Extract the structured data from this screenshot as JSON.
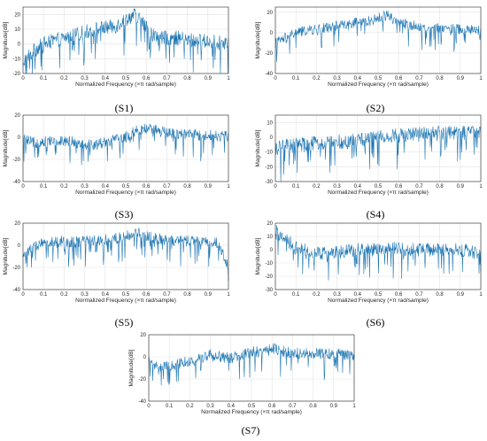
{
  "figure": {
    "xlabel": "Normalized Frequency  (×π rad/sample)",
    "ylabel": "Magnitude[dB]",
    "line_color": "#1f77b4"
  },
  "chart_data": [
    {
      "type": "line",
      "caption": "(S1)",
      "xlabel": "Normalized Frequency  (×π rad/sample)",
      "ylabel": "Magnitude[dB]",
      "xlim": [
        0,
        1
      ],
      "ylim": [
        -20,
        25
      ],
      "xticks": [
        "0",
        "0.1",
        "0.2",
        "0.3",
        "0.4",
        "0.5",
        "0.6",
        "0.7",
        "0.8",
        "0.9",
        "1"
      ],
      "yticks": [
        "-20",
        "-10",
        "0",
        "10",
        "20"
      ],
      "grid": true,
      "series": [
        {
          "x": [
            0,
            0.05,
            0.1,
            0.15,
            0.2,
            0.25,
            0.3,
            0.35,
            0.4,
            0.45,
            0.5,
            0.55,
            0.6,
            0.65,
            0.7,
            0.75,
            0.8,
            0.85,
            0.9,
            0.95,
            1
          ],
          "values": [
            -12,
            -5,
            0,
            2,
            4,
            6,
            8,
            10,
            11,
            12,
            17,
            20,
            11,
            4,
            4,
            4,
            3,
            2,
            2,
            1,
            0
          ]
        }
      ]
    },
    {
      "type": "line",
      "caption": "(S2)",
      "xlabel": "Normalized Frequency  (×π rad/sample)",
      "ylabel": "Magnitude[dB]",
      "xlim": [
        0,
        1
      ],
      "ylim": [
        -40,
        25
      ],
      "xticks": [
        "0",
        "0.1",
        "0.2",
        "0.3",
        "0.4",
        "0.5",
        "0.6",
        "0.7",
        "0.8",
        "0.9",
        "1"
      ],
      "yticks": [
        "-40",
        "-20",
        "0",
        "20"
      ],
      "grid": true,
      "series": [
        {
          "x": [
            0,
            0.05,
            0.1,
            0.15,
            0.2,
            0.25,
            0.3,
            0.35,
            0.4,
            0.45,
            0.5,
            0.55,
            0.6,
            0.65,
            0.7,
            0.75,
            0.8,
            0.85,
            0.9,
            0.95,
            1
          ],
          "values": [
            -10,
            -5,
            0,
            2,
            3,
            5,
            7,
            9,
            10,
            11,
            14,
            18,
            10,
            8,
            6,
            5,
            5,
            4,
            3,
            3,
            2
          ]
        }
      ]
    },
    {
      "type": "line",
      "caption": "(S3)",
      "xlabel": "Normalized Frequency  (×π rad/sample)",
      "ylabel": "Magnitude[dB]",
      "xlim": [
        0,
        1
      ],
      "ylim": [
        -40,
        20
      ],
      "xticks": [
        "0",
        "0.1",
        "0.2",
        "0.3",
        "0.4",
        "0.5",
        "0.6",
        "0.7",
        "0.8",
        "0.9",
        "1"
      ],
      "yticks": [
        "-40",
        "-20",
        "0",
        "20"
      ],
      "grid": true,
      "series": [
        {
          "x": [
            0,
            0.05,
            0.1,
            0.15,
            0.2,
            0.25,
            0.3,
            0.35,
            0.4,
            0.45,
            0.5,
            0.55,
            0.6,
            0.65,
            0.7,
            0.75,
            0.8,
            0.85,
            0.9,
            0.95,
            1
          ],
          "values": [
            -2,
            -5,
            -4,
            -3,
            -3,
            -4,
            -6,
            -7,
            -4,
            -2,
            0,
            6,
            8,
            6,
            4,
            3,
            3,
            2,
            2,
            1,
            1
          ]
        }
      ]
    },
    {
      "type": "line",
      "caption": "(S4)",
      "xlabel": "Normalized Frequency  (×π rad/sample)",
      "ylabel": "Magnitude[dB]",
      "xlim": [
        0,
        1
      ],
      "ylim": [
        -30,
        15
      ],
      "xticks": [
        "0",
        "0.1",
        "0.2",
        "0.3",
        "0.4",
        "0.5",
        "0.6",
        "0.7",
        "0.8",
        "0.9",
        "1"
      ],
      "yticks": [
        "-30",
        "-20",
        "-10",
        "0",
        "10"
      ],
      "grid": true,
      "series": [
        {
          "x": [
            0,
            0.05,
            0.1,
            0.15,
            0.2,
            0.25,
            0.3,
            0.35,
            0.4,
            0.45,
            0.5,
            0.55,
            0.6,
            0.65,
            0.7,
            0.75,
            0.8,
            0.85,
            0.9,
            0.95,
            1
          ],
          "values": [
            -8,
            -6,
            -5,
            -5,
            -4,
            -4,
            -3,
            -3,
            -2,
            -1,
            0,
            1,
            1,
            2,
            2,
            3,
            3,
            3,
            3,
            3,
            3
          ]
        }
      ]
    },
    {
      "type": "line",
      "caption": "(S5)",
      "xlabel": "Normalized Frequency  (×π rad/sample)",
      "ylabel": "Magnitude[dB]",
      "xlim": [
        0,
        1
      ],
      "ylim": [
        -40,
        20
      ],
      "xticks": [
        "0",
        "0.1",
        "0.2",
        "0.3",
        "0.4",
        "0.5",
        "0.6",
        "0.7",
        "0.8",
        "0.9",
        "1"
      ],
      "yticks": [
        "-40",
        "-20",
        "0",
        "20"
      ],
      "grid": true,
      "series": [
        {
          "x": [
            0,
            0.05,
            0.1,
            0.15,
            0.2,
            0.25,
            0.3,
            0.35,
            0.4,
            0.45,
            0.5,
            0.55,
            0.6,
            0.65,
            0.7,
            0.75,
            0.8,
            0.85,
            0.9,
            0.95,
            1
          ],
          "values": [
            -10,
            -2,
            2,
            3,
            4,
            3,
            4,
            5,
            5,
            6,
            8,
            12,
            8,
            6,
            5,
            4,
            4,
            3,
            3,
            2,
            -20
          ]
        }
      ]
    },
    {
      "type": "line",
      "caption": "(S6)",
      "xlabel": "Normalized Frequency  (×π rad/sample)",
      "ylabel": "Magnitude[dB]",
      "xlim": [
        0,
        1
      ],
      "ylim": [
        -30,
        20
      ],
      "xticks": [
        "0",
        "0.1",
        "0.2",
        "0.3",
        "0.4",
        "0.5",
        "0.6",
        "0.7",
        "0.8",
        "0.9",
        "1"
      ],
      "yticks": [
        "-30",
        "-20",
        "-10",
        "0",
        "10",
        "20"
      ],
      "grid": true,
      "series": [
        {
          "x": [
            0,
            0.05,
            0.1,
            0.15,
            0.2,
            0.25,
            0.3,
            0.35,
            0.4,
            0.45,
            0.5,
            0.55,
            0.6,
            0.65,
            0.7,
            0.75,
            0.8,
            0.85,
            0.9,
            0.95,
            1
          ],
          "values": [
            14,
            8,
            2,
            0,
            -2,
            -3,
            -2,
            -1,
            0,
            0,
            0,
            1,
            1,
            0,
            0,
            0,
            0,
            0,
            0,
            -1,
            -5
          ]
        }
      ]
    },
    {
      "type": "line",
      "caption": "(S7)",
      "xlabel": "Normalized Frequency  (×π rad/sample)",
      "ylabel": "Magnitude[dB]",
      "xlim": [
        0,
        1
      ],
      "ylim": [
        -40,
        20
      ],
      "xticks": [
        "0",
        "0.1",
        "0.2",
        "0.3",
        "0.4",
        "0.5",
        "0.6",
        "0.7",
        "0.8",
        "0.9",
        "1"
      ],
      "yticks": [
        "-40",
        "-20",
        "0",
        "20"
      ],
      "grid": true,
      "series": [
        {
          "x": [
            0,
            0.05,
            0.1,
            0.15,
            0.2,
            0.25,
            0.3,
            0.35,
            0.4,
            0.45,
            0.5,
            0.55,
            0.6,
            0.65,
            0.7,
            0.75,
            0.8,
            0.85,
            0.9,
            0.95,
            1
          ],
          "values": [
            -5,
            -10,
            -8,
            -6,
            -4,
            -2,
            2,
            0,
            -1,
            2,
            4,
            6,
            8,
            5,
            4,
            3,
            3,
            3,
            3,
            2,
            1
          ]
        }
      ]
    }
  ]
}
